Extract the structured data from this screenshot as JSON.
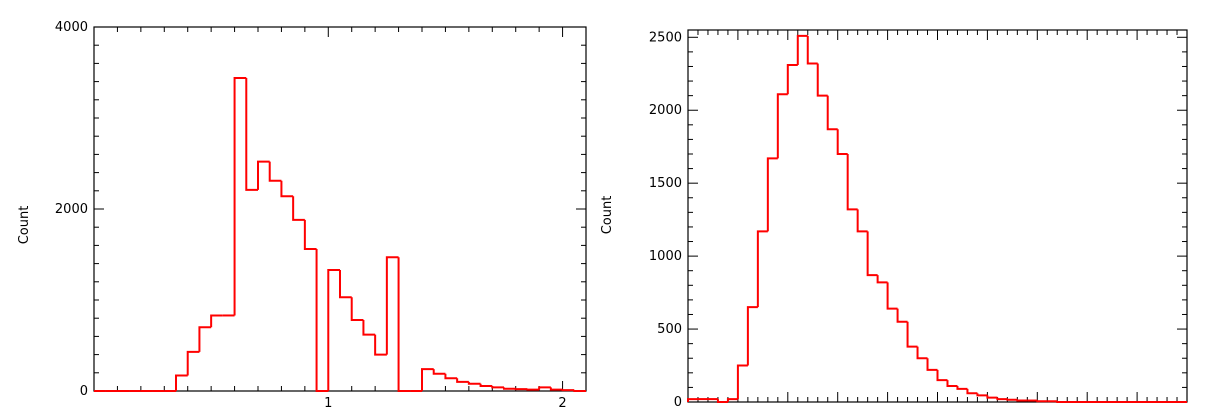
{
  "chart_data": [
    {
      "type": "histogram",
      "ylabel": "Count",
      "xlim": [
        0,
        2.1
      ],
      "ylim": [
        0,
        4000
      ],
      "x_ticks": [
        {
          "value": 1,
          "label": "1"
        },
        {
          "value": 2,
          "label": "2"
        }
      ],
      "y_ticks": [
        {
          "value": 0,
          "label": "0"
        },
        {
          "value": 2000,
          "label": "2000"
        },
        {
          "value": 4000,
          "label": "4000"
        }
      ],
      "bin_width": 0.05,
      "bins_start": 0,
      "counts": [
        0,
        0,
        0,
        0,
        0,
        0,
        0,
        170,
        430,
        700,
        830,
        830,
        3440,
        2210,
        2520,
        2310,
        2140,
        1880,
        1560,
        0,
        1330,
        1030,
        780,
        620,
        400,
        1470,
        0,
        0,
        240,
        190,
        140,
        100,
        80,
        55,
        40,
        25,
        20,
        15,
        40,
        15,
        10,
        0,
        0
      ],
      "line_color": "#ff0000"
    },
    {
      "type": "histogram",
      "ylabel": "Count",
      "xlim": [
        0,
        5
      ],
      "ylim": [
        0,
        2550
      ],
      "x_ticks": [],
      "y_ticks": [
        {
          "value": 0,
          "label": "0"
        },
        {
          "value": 500,
          "label": "500"
        },
        {
          "value": 1000,
          "label": "1000"
        },
        {
          "value": 1500,
          "label": "1500"
        },
        {
          "value": 2000,
          "label": "2000"
        },
        {
          "value": 2500,
          "label": "2500"
        }
      ],
      "bin_width": 0.1,
      "bins_start": 0,
      "counts": [
        20,
        20,
        20,
        0,
        20,
        250,
        650,
        1170,
        1670,
        2110,
        2310,
        2510,
        2320,
        2100,
        1870,
        1700,
        1320,
        1170,
        870,
        820,
        640,
        550,
        380,
        300,
        220,
        150,
        110,
        90,
        60,
        45,
        30,
        20,
        15,
        10,
        10,
        5,
        5,
        0,
        0,
        0,
        0,
        0,
        0,
        0,
        0,
        0,
        0,
        0,
        0,
        0
      ],
      "line_color": "#ff0000"
    }
  ]
}
